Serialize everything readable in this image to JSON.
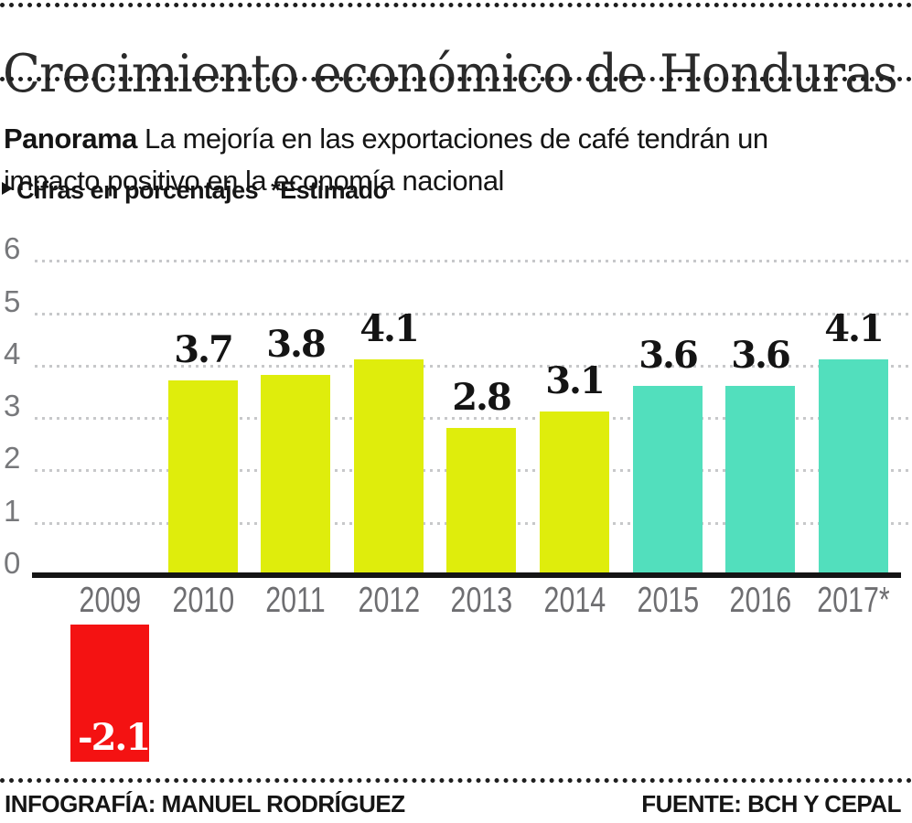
{
  "header": {
    "title": "Crecimiento económico de Honduras",
    "kicker": "Panorama",
    "subtitle_line1": " La mejoría en las exportaciones de café tendrán un",
    "subtitle_line2": "impacto positivo en la economía nacional"
  },
  "note": {
    "label": "Cifras en porcentajes",
    "estimated": "*Estimado"
  },
  "chart_data": {
    "type": "bar",
    "categories": [
      "2009",
      "2010",
      "2011",
      "2012",
      "2013",
      "2014",
      "2015",
      "2016",
      "2017*"
    ],
    "values": [
      -2.1,
      3.7,
      3.8,
      4.1,
      2.8,
      3.1,
      3.6,
      3.6,
      4.1
    ],
    "bar_colors": [
      "#f41212",
      "#dfed0c",
      "#dfed0c",
      "#dfed0c",
      "#dfed0c",
      "#dfed0c",
      "#52dfbd",
      "#52dfbd",
      "#52dfbd"
    ],
    "palette": {
      "negative": "#f41212",
      "historical": "#dfed0c",
      "estimated": "#52dfbd",
      "grid": "#c7c8ca",
      "axis": "#151515"
    },
    "units": "porcentajes",
    "ylim": [
      0,
      6
    ],
    "yticks": [
      0,
      1,
      2,
      3,
      4,
      5,
      6
    ],
    "grid": "horizontal-dotted",
    "legend": "none",
    "xlabel": "",
    "ylabel": ""
  },
  "footer": {
    "credit": "INFOGRAFÍA: MANUEL RODRÍGUEZ",
    "source": "FUENTE: BCH Y CEPAL"
  }
}
